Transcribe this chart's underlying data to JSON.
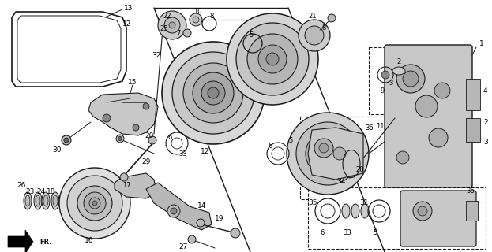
{
  "bg": "#f0f0f0",
  "lc": "#1a1a1a",
  "fig_w": 6.23,
  "fig_h": 3.2,
  "dpi": 100
}
